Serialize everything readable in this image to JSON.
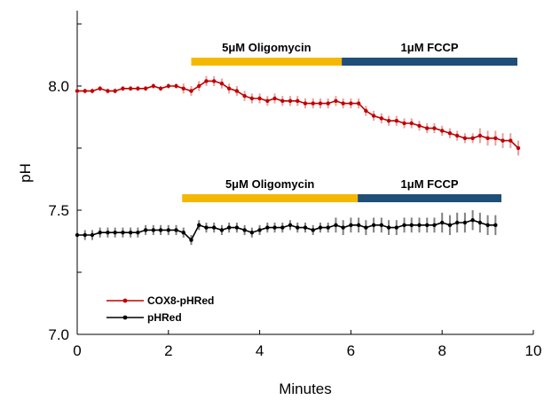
{
  "chart_data": {
    "type": "line",
    "xlabel": "Minutes",
    "ylabel": "pH",
    "xlim": [
      0,
      10
    ],
    "ylim": [
      7.0,
      8.25
    ],
    "x_ticks": [
      "0",
      "2",
      "4",
      "6",
      "8",
      "10"
    ],
    "y_ticks": [
      "7.0",
      "7.5",
      "8.0"
    ],
    "grid": false,
    "legend_position": "bottom-left",
    "series": [
      {
        "name": "COX8-pHRed",
        "color": "#c00000",
        "error_color": "#e8a0a0",
        "x": [
          0.0,
          0.17,
          0.33,
          0.5,
          0.67,
          0.83,
          1.0,
          1.17,
          1.33,
          1.5,
          1.67,
          1.83,
          2.0,
          2.17,
          2.33,
          2.5,
          2.67,
          2.83,
          3.0,
          3.17,
          3.33,
          3.5,
          3.67,
          3.83,
          4.0,
          4.17,
          4.33,
          4.5,
          4.67,
          4.83,
          5.0,
          5.17,
          5.33,
          5.5,
          5.67,
          5.83,
          6.0,
          6.17,
          6.33,
          6.5,
          6.67,
          6.83,
          7.0,
          7.17,
          7.33,
          7.5,
          7.67,
          7.83,
          8.0,
          8.17,
          8.33,
          8.5,
          8.67,
          8.83,
          9.0,
          9.17,
          9.33,
          9.5,
          9.67
        ],
        "y": [
          7.98,
          7.98,
          7.98,
          7.99,
          7.98,
          7.98,
          7.99,
          7.99,
          7.99,
          7.99,
          8.0,
          7.99,
          8.0,
          8.0,
          7.99,
          7.98,
          8.0,
          8.02,
          8.02,
          8.01,
          7.99,
          7.98,
          7.96,
          7.95,
          7.95,
          7.94,
          7.95,
          7.94,
          7.94,
          7.94,
          7.93,
          7.93,
          7.93,
          7.93,
          7.94,
          7.93,
          7.93,
          7.93,
          7.9,
          7.88,
          7.87,
          7.86,
          7.86,
          7.85,
          7.85,
          7.84,
          7.83,
          7.83,
          7.82,
          7.81,
          7.8,
          7.79,
          7.79,
          7.8,
          7.79,
          7.79,
          7.78,
          7.78,
          7.75
        ],
        "err": [
          0.01,
          0.01,
          0.01,
          0.01,
          0.01,
          0.01,
          0.01,
          0.01,
          0.01,
          0.01,
          0.01,
          0.01,
          0.01,
          0.01,
          0.02,
          0.02,
          0.02,
          0.02,
          0.02,
          0.02,
          0.02,
          0.02,
          0.02,
          0.02,
          0.02,
          0.02,
          0.02,
          0.02,
          0.02,
          0.02,
          0.02,
          0.02,
          0.02,
          0.02,
          0.02,
          0.02,
          0.02,
          0.02,
          0.02,
          0.02,
          0.02,
          0.02,
          0.02,
          0.02,
          0.02,
          0.02,
          0.02,
          0.02,
          0.02,
          0.02,
          0.02,
          0.02,
          0.02,
          0.03,
          0.03,
          0.03,
          0.03,
          0.03,
          0.03
        ]
      },
      {
        "name": "pHRed",
        "color": "#000000",
        "error_color": "#808080",
        "x": [
          0.0,
          0.17,
          0.33,
          0.5,
          0.67,
          0.83,
          1.0,
          1.17,
          1.33,
          1.5,
          1.67,
          1.83,
          2.0,
          2.17,
          2.33,
          2.5,
          2.67,
          2.83,
          3.0,
          3.17,
          3.33,
          3.5,
          3.67,
          3.83,
          4.0,
          4.17,
          4.33,
          4.5,
          4.67,
          4.83,
          5.0,
          5.17,
          5.33,
          5.5,
          5.67,
          5.83,
          6.0,
          6.17,
          6.33,
          6.5,
          6.67,
          6.83,
          7.0,
          7.17,
          7.33,
          7.5,
          7.67,
          7.83,
          8.0,
          8.17,
          8.33,
          8.5,
          8.67,
          8.83,
          9.0,
          9.17
        ],
        "y": [
          7.4,
          7.4,
          7.4,
          7.41,
          7.41,
          7.41,
          7.41,
          7.41,
          7.41,
          7.42,
          7.42,
          7.42,
          7.42,
          7.42,
          7.41,
          7.38,
          7.44,
          7.43,
          7.43,
          7.42,
          7.43,
          7.43,
          7.42,
          7.41,
          7.42,
          7.43,
          7.43,
          7.43,
          7.44,
          7.43,
          7.43,
          7.42,
          7.43,
          7.43,
          7.44,
          7.43,
          7.44,
          7.44,
          7.43,
          7.44,
          7.44,
          7.43,
          7.43,
          7.44,
          7.44,
          7.44,
          7.44,
          7.44,
          7.45,
          7.44,
          7.45,
          7.45,
          7.46,
          7.45,
          7.44,
          7.44
        ],
        "err": [
          0.02,
          0.02,
          0.02,
          0.02,
          0.02,
          0.02,
          0.02,
          0.02,
          0.02,
          0.02,
          0.02,
          0.02,
          0.02,
          0.02,
          0.02,
          0.02,
          0.02,
          0.02,
          0.02,
          0.02,
          0.02,
          0.02,
          0.02,
          0.02,
          0.02,
          0.02,
          0.02,
          0.02,
          0.02,
          0.02,
          0.02,
          0.02,
          0.02,
          0.02,
          0.03,
          0.03,
          0.03,
          0.03,
          0.03,
          0.03,
          0.03,
          0.03,
          0.03,
          0.03,
          0.03,
          0.03,
          0.03,
          0.03,
          0.04,
          0.04,
          0.04,
          0.04,
          0.04,
          0.04,
          0.04,
          0.04
        ]
      }
    ],
    "treatment_bars": [
      {
        "group": "COX8-pHRed",
        "label": "5μM Oligomycin",
        "x_start": 2.5,
        "x_end": 5.8,
        "y": 8.1,
        "color": "#f5b800"
      },
      {
        "group": "COX8-pHRed",
        "label": "1μM FCCP",
        "x_start": 5.8,
        "x_end": 9.65,
        "y": 8.1,
        "color": "#1f4e79"
      },
      {
        "group": "pHRed",
        "label": "5μM Oligomycin",
        "x_start": 2.3,
        "x_end": 6.15,
        "y": 7.55,
        "color": "#f5b800"
      },
      {
        "group": "pHRed",
        "label": "1μM FCCP",
        "x_start": 6.15,
        "x_end": 9.3,
        "y": 7.55,
        "color": "#1f4e79"
      }
    ]
  }
}
